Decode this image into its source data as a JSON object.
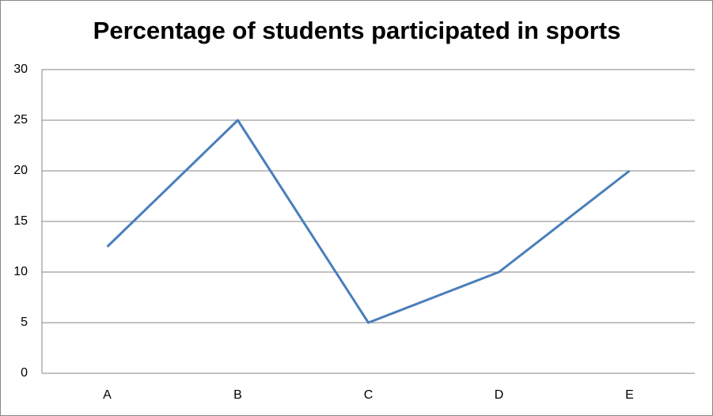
{
  "chart_data": {
    "type": "line",
    "title": "Percentage of students participated in sports",
    "categories": [
      "A",
      "B",
      "C",
      "D",
      "E"
    ],
    "series": [
      {
        "color": "#4a7ebb",
        "values": [
          12.5,
          25,
          5,
          10,
          20
        ]
      }
    ],
    "ylim": [
      0,
      30
    ],
    "yticks": [
      0,
      5,
      10,
      15,
      20,
      25,
      30
    ],
    "grid": true
  }
}
